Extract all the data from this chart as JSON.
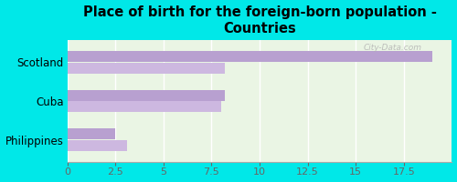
{
  "title": "Place of birth for the foreign-born population -\nCountries",
  "categories": [
    "Scotland",
    "Cuba",
    "Philippines"
  ],
  "values1": [
    19.0,
    8.2,
    2.5
  ],
  "values2": [
    8.2,
    8.0,
    3.1
  ],
  "bar_color1": "#b8a0d0",
  "bar_color2": "#cdb8e0",
  "bg_outer": "#00e8e8",
  "bg_inner": "#eaf5e4",
  "xlim": [
    0,
    20
  ],
  "xticks": [
    0,
    2.5,
    5,
    7.5,
    10,
    12.5,
    15,
    17.5
  ],
  "watermark": "City-Data.com",
  "title_fontsize": 10.5,
  "tick_fontsize": 8,
  "label_fontsize": 8.5
}
